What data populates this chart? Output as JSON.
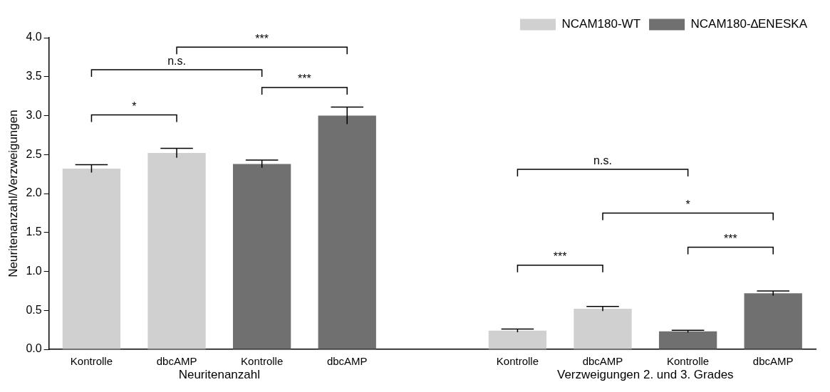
{
  "chart_data": {
    "type": "bar",
    "ylabel": "Neuritenanzahl/Verzweigungen",
    "categories": [
      "Kontrolle",
      "dbcAMP",
      "Kontrolle",
      "dbcAMP",
      null,
      "Kontrolle",
      "dbcAMP",
      "Kontrolle",
      "dbcAMP"
    ],
    "series": [
      {
        "name": "NCAM180-WT",
        "color": "#d0d0d0",
        "values": [
          2.32,
          2.52,
          null,
          null,
          null,
          0.24,
          0.52,
          null,
          null
        ],
        "errors": [
          0.05,
          0.06,
          null,
          null,
          null,
          0.02,
          0.03,
          null,
          null
        ]
      },
      {
        "name": "NCAM180-∆ENESKA",
        "color": "#707070",
        "values": [
          null,
          null,
          2.38,
          3.0,
          null,
          null,
          null,
          0.23,
          0.72
        ],
        "errors": [
          null,
          null,
          0.05,
          0.11,
          null,
          null,
          null,
          0.015,
          0.03
        ]
      }
    ],
    "ylim": [
      0,
      4
    ],
    "yticks": [
      {
        "value": 0,
        "label": "0.0"
      },
      {
        "value": 0.5,
        "label": "0.5"
      },
      {
        "value": 1,
        "label": "1.0"
      },
      {
        "value": 1.5,
        "label": "1.5"
      },
      {
        "value": 2,
        "label": "2.0"
      },
      {
        "value": 2.5,
        "label": "2.5"
      },
      {
        "value": 3,
        "label": "3.0"
      },
      {
        "value": 3.5,
        "label": "3.5"
      },
      {
        "value": 4,
        "label": "4.0"
      }
    ],
    "annotations": [
      "*",
      "n.s.",
      "***",
      "***",
      "n.s.",
      "***",
      "*",
      "***",
      "Neuritenanzahl",
      "Verzweigungen 2. und 3. Grades"
    ],
    "grid": false,
    "legend": "top right"
  }
}
